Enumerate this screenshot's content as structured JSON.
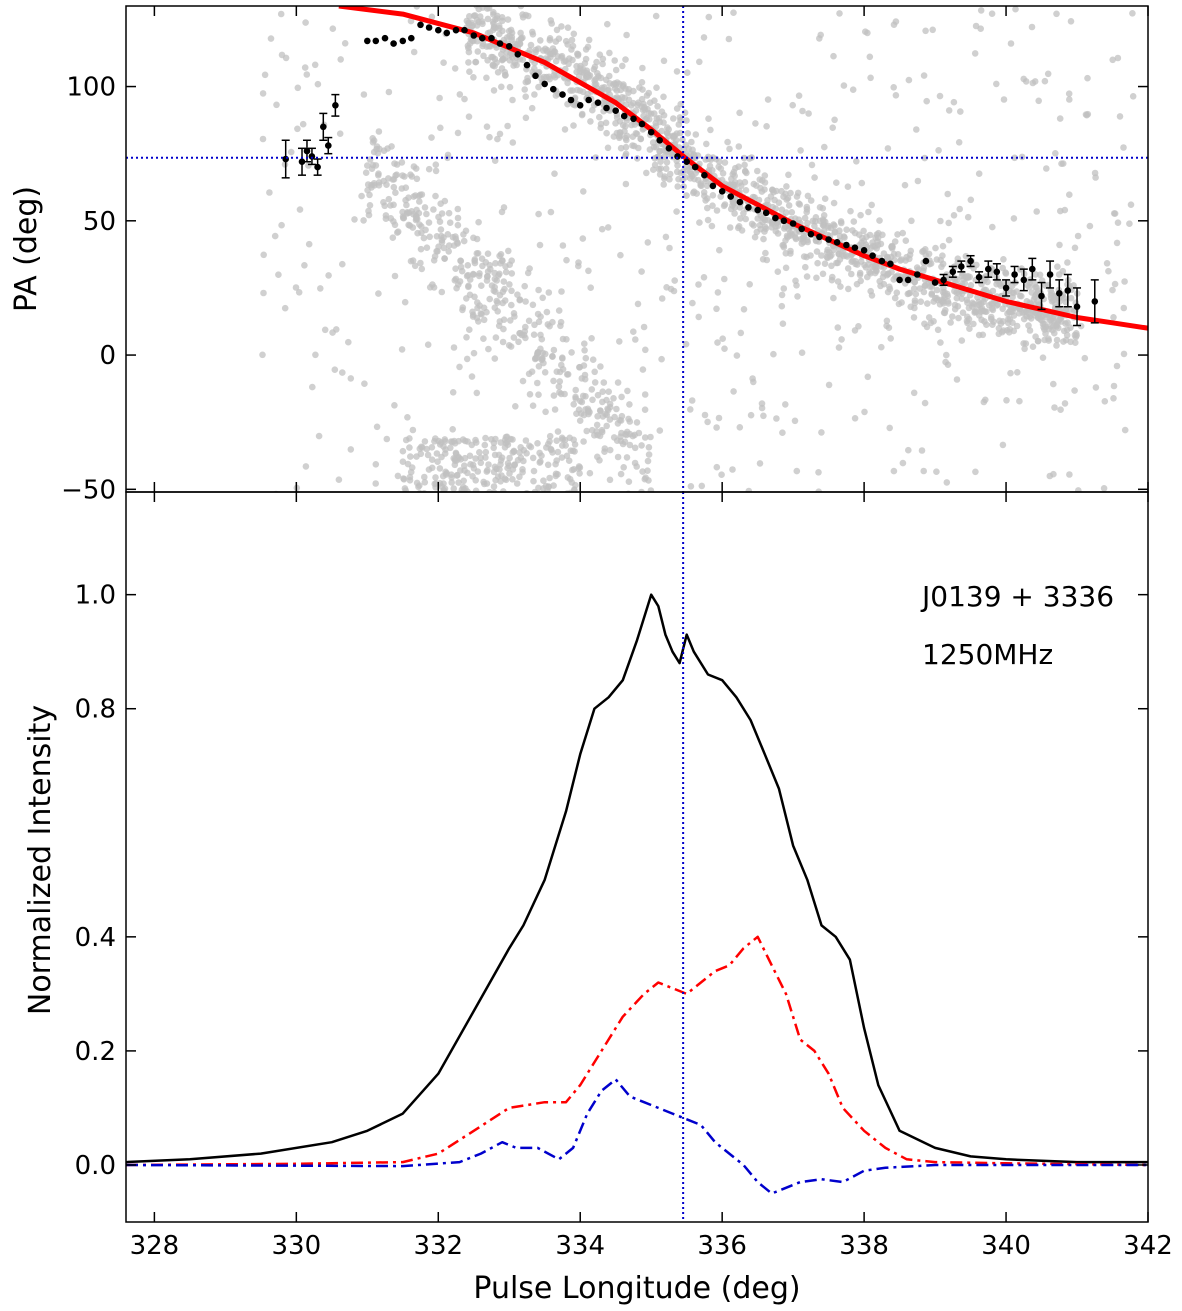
{
  "chart_data": [
    {
      "type": "scatter",
      "panel": "top",
      "title": "",
      "xlabel": "Pulse Longitude (deg)",
      "ylabel": "PA (deg)",
      "xlim": [
        327.6,
        342.0
      ],
      "ylim": [
        -51,
        130
      ],
      "yticks": [
        -50,
        0,
        50,
        100
      ],
      "grid": false,
      "reference_lines": {
        "x": 335.45,
        "y": 73.5,
        "color": "#0000cc",
        "style": "dotted"
      },
      "fit_curve": {
        "color": "#ff0000",
        "x": [
          330.6,
          331.5,
          332.5,
          333.5,
          334.5,
          335.0,
          335.5,
          336.0,
          336.5,
          337.0,
          337.5,
          338.0,
          338.5,
          339.0,
          339.5,
          340.0,
          340.5,
          341.0,
          341.5,
          342.0
        ],
        "y": [
          130,
          127,
          120,
          109,
          94,
          84,
          73,
          63,
          56,
          49,
          43,
          37,
          32,
          28,
          24,
          20,
          17,
          14,
          12,
          10
        ]
      },
      "background_points_color": "#c0c0c0",
      "series": [
        {
          "style": "black points with error bars",
          "x": [
            329.85,
            330.08,
            330.15,
            330.22,
            330.3,
            330.38,
            330.45,
            330.55,
            331.0,
            331.12,
            331.25,
            331.37,
            331.5,
            331.62,
            331.75,
            331.87,
            332.0,
            332.12,
            332.25,
            332.37,
            332.5,
            332.62,
            332.75,
            332.87,
            333.0,
            333.12,
            333.25,
            333.37,
            333.5,
            333.62,
            333.75,
            333.87,
            334.0,
            334.12,
            334.25,
            334.37,
            334.5,
            334.62,
            334.75,
            334.87,
            335.0,
            335.12,
            335.25,
            335.37,
            335.5,
            335.62,
            335.75,
            335.87,
            336.0,
            336.12,
            336.25,
            336.37,
            336.5,
            336.62,
            336.75,
            336.87,
            337.0,
            337.12,
            337.25,
            337.37,
            337.5,
            337.62,
            337.75,
            337.87,
            338.0,
            338.12,
            338.25,
            338.37,
            338.5,
            338.62,
            338.75,
            338.87,
            339.0,
            339.12,
            339.25,
            339.37,
            339.5,
            339.62,
            339.75,
            339.87,
            340.0,
            340.12,
            340.25,
            340.37,
            340.5,
            340.62,
            340.75,
            340.87,
            341.0,
            341.25
          ],
          "y": [
            73,
            72,
            76,
            74,
            70,
            85,
            78,
            93,
            117,
            117,
            118,
            116,
            117,
            118,
            123,
            122,
            121,
            120,
            121,
            121,
            119,
            118,
            118,
            116,
            115,
            112,
            108,
            104,
            101,
            99,
            97,
            95,
            93,
            95,
            94,
            92,
            91,
            89,
            88,
            86,
            83,
            80,
            77,
            74,
            72,
            70,
            67,
            63,
            61,
            59,
            57,
            55,
            54,
            53,
            51,
            50,
            49,
            47,
            45,
            44,
            43,
            42,
            41,
            40,
            39,
            37,
            35,
            34,
            28,
            28,
            30,
            35,
            27,
            28,
            31,
            33,
            35,
            29,
            32,
            31,
            25,
            30,
            28,
            32,
            22,
            30,
            23,
            24,
            18,
            20
          ],
          "err": [
            7,
            5,
            4,
            3,
            3,
            5,
            3,
            4,
            1,
            1,
            1,
            1,
            1,
            1,
            1,
            1,
            1,
            1,
            1,
            1,
            1,
            1,
            1,
            1,
            1,
            1,
            1,
            1,
            1,
            1,
            1,
            1,
            1,
            1,
            1,
            1,
            1,
            1,
            1,
            1,
            1,
            1,
            1,
            1,
            1,
            1,
            1,
            1,
            1,
            1,
            1,
            1,
            1,
            1,
            1,
            1,
            1,
            1,
            1,
            1,
            1,
            1,
            1,
            1,
            1,
            1,
            1,
            1,
            1,
            1,
            1,
            1,
            1,
            2,
            2,
            2,
            2,
            2,
            3,
            3,
            3,
            3,
            4,
            4,
            5,
            5,
            5,
            6,
            7,
            8
          ]
        }
      ]
    },
    {
      "type": "line",
      "panel": "bottom",
      "title": "",
      "xlabel": "Pulse Longitude (deg)",
      "ylabel": "Normalized Intensity",
      "xlim": [
        327.6,
        342.0
      ],
      "ylim": [
        -0.1,
        1.18
      ],
      "xticks": [
        328,
        330,
        332,
        334,
        336,
        338,
        340,
        342
      ],
      "yticks": [
        0.0,
        0.2,
        0.4,
        0.8,
        1.0
      ],
      "grid": false,
      "annotations": [
        "J0139 + 3336",
        "1250MHz"
      ],
      "annotation_placement": "top-right",
      "reference_lines": {
        "x": 335.45,
        "color": "#0000cc",
        "style": "dotted"
      },
      "series": [
        {
          "style": "solid",
          "color": "#000000",
          "x": [
            327.6,
            328.5,
            329.5,
            330.5,
            331.0,
            331.5,
            332.0,
            332.5,
            333.0,
            333.2,
            333.5,
            333.8,
            334.0,
            334.2,
            334.4,
            334.6,
            334.8,
            335.0,
            335.1,
            335.2,
            335.3,
            335.4,
            335.5,
            335.6,
            335.8,
            336.0,
            336.2,
            336.4,
            336.6,
            336.8,
            337.0,
            337.2,
            337.4,
            337.6,
            337.8,
            338.0,
            338.2,
            338.5,
            339.0,
            339.5,
            340.0,
            341.0,
            342.0
          ],
          "y": [
            0.005,
            0.01,
            0.02,
            0.04,
            0.06,
            0.09,
            0.16,
            0.27,
            0.38,
            0.42,
            0.5,
            0.62,
            0.72,
            0.8,
            0.82,
            0.85,
            0.92,
            1.0,
            0.98,
            0.93,
            0.9,
            0.88,
            0.93,
            0.9,
            0.86,
            0.85,
            0.82,
            0.78,
            0.72,
            0.66,
            0.56,
            0.5,
            0.42,
            0.4,
            0.36,
            0.24,
            0.14,
            0.06,
            0.03,
            0.015,
            0.01,
            0.005,
            0.005
          ]
        },
        {
          "style": "dashdot",
          "color": "#ff0000",
          "x": [
            327.6,
            330.0,
            331.5,
            332.0,
            332.5,
            333.0,
            333.5,
            333.8,
            334.0,
            334.3,
            334.6,
            334.9,
            335.1,
            335.3,
            335.5,
            335.7,
            335.9,
            336.1,
            336.3,
            336.5,
            336.7,
            336.9,
            337.1,
            337.3,
            337.5,
            337.7,
            338.0,
            338.3,
            338.6,
            339.0,
            340.0,
            342.0
          ],
          "y": [
            0.0,
            0.002,
            0.005,
            0.02,
            0.06,
            0.1,
            0.11,
            0.11,
            0.14,
            0.2,
            0.26,
            0.3,
            0.32,
            0.31,
            0.3,
            0.32,
            0.34,
            0.35,
            0.38,
            0.4,
            0.35,
            0.3,
            0.22,
            0.2,
            0.16,
            0.1,
            0.06,
            0.03,
            0.01,
            0.005,
            0.003,
            0.0
          ]
        },
        {
          "style": "dashdot",
          "color": "#0000cc",
          "x": [
            327.6,
            331.5,
            332.3,
            332.6,
            332.9,
            333.1,
            333.4,
            333.7,
            333.9,
            334.1,
            334.3,
            334.5,
            334.7,
            334.9,
            335.1,
            335.3,
            335.5,
            335.7,
            335.9,
            336.1,
            336.3,
            336.5,
            336.7,
            336.9,
            337.1,
            337.4,
            337.7,
            338.0,
            338.3,
            339.0,
            342.0
          ],
          "y": [
            0.0,
            -0.002,
            0.005,
            0.02,
            0.04,
            0.03,
            0.03,
            0.01,
            0.03,
            0.09,
            0.13,
            0.15,
            0.12,
            0.11,
            0.1,
            0.09,
            0.08,
            0.07,
            0.04,
            0.02,
            0.0,
            -0.03,
            -0.05,
            -0.04,
            -0.03,
            -0.025,
            -0.03,
            -0.01,
            -0.005,
            0.0,
            0.0
          ]
        }
      ]
    }
  ]
}
